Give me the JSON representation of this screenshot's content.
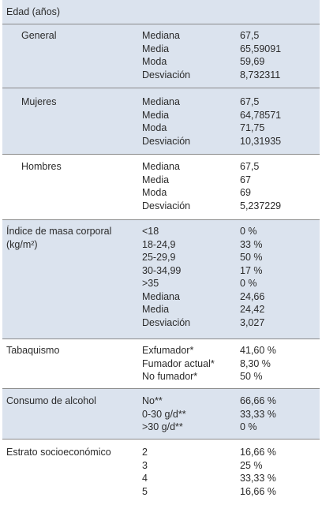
{
  "age": {
    "header": "Edad (años)",
    "groups": [
      {
        "label": "General",
        "stats": [
          "Mediana",
          "Media",
          "Moda",
          "Desviación"
        ],
        "values": [
          "67,5",
          "65,59091",
          "59,69",
          "8,732311"
        ]
      },
      {
        "label": "Mujeres",
        "stats": [
          "Mediana",
          "Media",
          "Moda",
          "Desviación"
        ],
        "values": [
          "67,5",
          "64,78571",
          "71,75",
          "10,31935"
        ]
      },
      {
        "label": "Hombres",
        "stats": [
          "Mediana",
          "Media",
          "Moda",
          "Desviación"
        ],
        "values": [
          "67,5",
          "67",
          "69",
          "5,237229"
        ]
      }
    ]
  },
  "bmi": {
    "label_line1": "Índice de masa corporal",
    "label_line2": "(kg/m²)",
    "stats": [
      "<18",
      "18-24,9",
      "25-29,9",
      "30-34,99",
      ">35",
      "Mediana",
      "Media",
      "Desviación"
    ],
    "values": [
      "0 %",
      "33 %",
      "50 %",
      "17 %",
      "0 %",
      "24,66",
      "24,42",
      "3,027"
    ]
  },
  "smoking": {
    "label": "Tabaquismo",
    "stats": [
      "Exfumador*",
      "Fumador actual*",
      "No fumador*"
    ],
    "values": [
      "41,60 %",
      "8,30 %",
      "50 %"
    ]
  },
  "alcohol": {
    "label": "Consumo de alcohol",
    "stats": [
      "No**",
      "0-30 g/d**",
      ">30 g/d**"
    ],
    "values": [
      "66,66 %",
      "33,33 %",
      "0 %"
    ]
  },
  "ses": {
    "label": "Estrato socioeconómico",
    "stats": [
      "2",
      "3",
      "4",
      "5"
    ],
    "values": [
      "16,66 %",
      "25 %",
      "33,33 %",
      "16,66 %"
    ]
  },
  "colors": {
    "row_shade": "#dbe3ee",
    "rule": "#8a8a8a",
    "text": "#2b2b2b"
  }
}
